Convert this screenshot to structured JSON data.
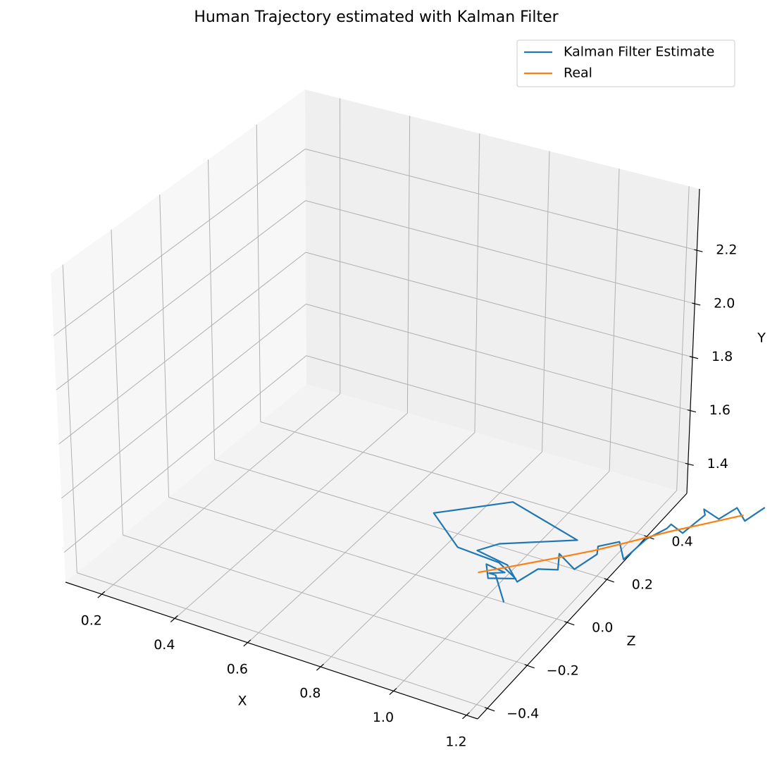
{
  "chart_data": {
    "type": "line3d",
    "title": "Human Trajectory estimated with Kalman Filter",
    "xlabel": "X",
    "ylabel": "Y",
    "zlabel": "Z",
    "xlim": [
      0.1,
      1.23
    ],
    "ylim": [
      1.29,
      2.43
    ],
    "zlim": [
      -0.45,
      0.6
    ],
    "xticks": [
      0.2,
      0.4,
      0.6,
      0.8,
      {
        "value": 1,
        "label": "1.0"
      },
      1.2
    ],
    "yticks": [
      1.4,
      1.6,
      1.8,
      {
        "value": 2,
        "label": "2.0"
      },
      2.2
    ],
    "zticks": [
      {
        "value": -0.4,
        "label": "−0.4"
      },
      {
        "value": -0.2,
        "label": "−0.2"
      },
      {
        "value": 0,
        "label": "0.0"
      },
      0.2,
      0.4
    ],
    "grid": true,
    "legend": "upper right",
    "series": [
      {
        "name": "Kalman Filter Estimate",
        "color": "#1f77b4",
        "x": [
          1.05,
          0.98,
          0.95,
          1.0,
          0.93,
          0.97,
          1.02,
          0.96,
          0.83,
          0.7,
          0.85,
          1.08,
          0.92,
          0.88,
          0.99,
          1.03,
          1.06,
          1.1,
          1.08,
          1.13,
          1.16,
          1.14,
          1.19,
          1.22,
          1.24,
          1.27,
          1.26,
          1.3,
          1.33,
          1.31,
          1.36,
          1.39,
          1.42,
          1.45
        ],
        "z": [
          0.0,
          0.08,
          0.1,
          0.09,
          0.12,
          0.06,
          0.11,
          0.13,
          0.15,
          0.25,
          0.38,
          0.31,
          0.2,
          0.16,
          0.12,
          0.1,
          0.15,
          0.18,
          0.22,
          0.21,
          0.27,
          0.31,
          0.33,
          0.3,
          0.38,
          0.43,
          0.47,
          0.46,
          0.52,
          0.55,
          0.54,
          0.58,
          0.57,
          0.62
        ],
        "y": [
          1.29,
          1.3,
          1.28,
          1.31,
          1.29,
          1.3,
          1.28,
          1.3,
          1.29,
          1.29,
          1.29,
          1.29,
          1.3,
          1.29,
          1.31,
          1.28,
          1.3,
          1.29,
          1.31,
          1.28,
          1.3,
          1.29,
          1.31,
          1.28,
          1.3,
          1.31,
          1.29,
          1.28,
          1.31,
          1.3,
          1.29,
          1.31,
          1.28,
          1.3
        ]
      },
      {
        "name": "Real",
        "color": "#ff7f0e",
        "x": [
          0.93,
          1.0,
          1.07,
          1.14,
          1.21,
          1.27,
          1.34,
          1.41
        ],
        "z": [
          0.08,
          0.15,
          0.22,
          0.29,
          0.37,
          0.44,
          0.51,
          0.58
        ],
        "y": [
          1.29,
          1.29,
          1.29,
          1.29,
          1.29,
          1.29,
          1.29,
          1.29
        ]
      }
    ]
  }
}
